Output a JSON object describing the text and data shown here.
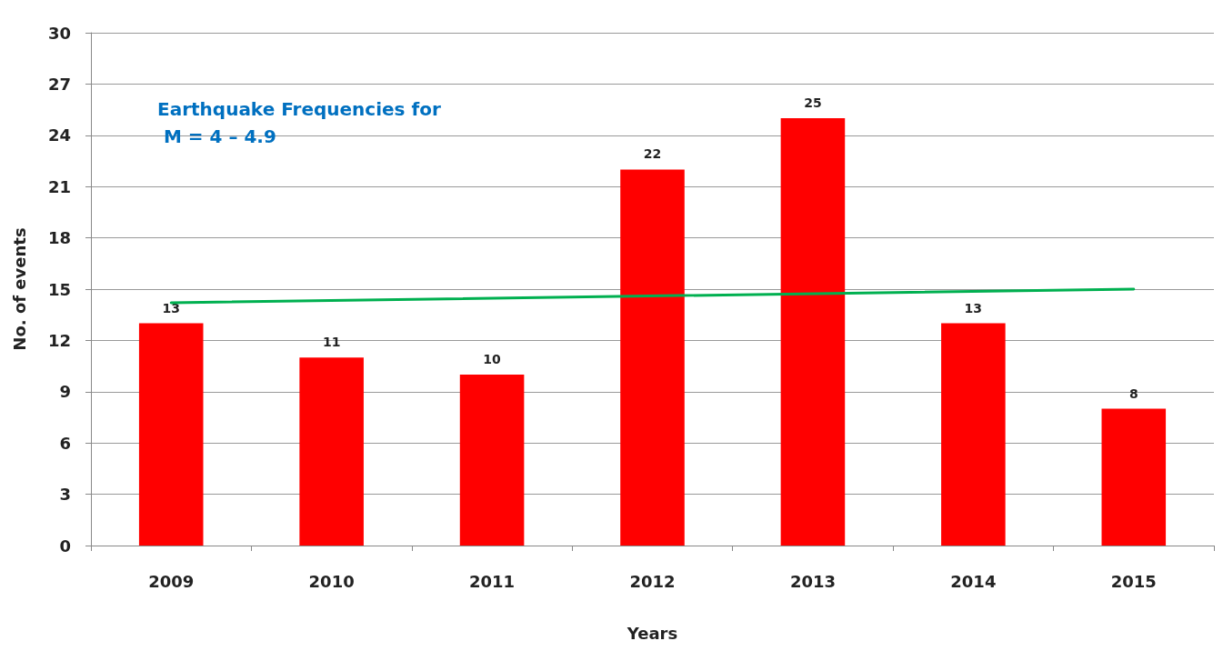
{
  "chart_data": {
    "type": "bar",
    "title": "Earthquake Frequencies for M = 4 – 4.9",
    "xlabel": "Years",
    "ylabel": "No. of events",
    "categories": [
      "2009",
      "2010",
      "2011",
      "2012",
      "2013",
      "2014",
      "2015"
    ],
    "series": [
      {
        "color": "#ff0000",
        "values": [
          13,
          11,
          10,
          22,
          25,
          13,
          8
        ],
        "value_labels": [
          "13",
          "11",
          "10",
          "22",
          "25",
          "13",
          "8"
        ]
      },
      {
        "type": "line",
        "color": "#00b050",
        "values": [
          14.2,
          null,
          null,
          null,
          null,
          null,
          15.0
        ]
      }
    ],
    "ylim": [
      0,
      30
    ],
    "yticks": [
      0,
      3,
      6,
      9,
      12,
      15,
      18,
      21,
      24,
      27,
      30
    ],
    "grid": "y",
    "marker": "none",
    "line_style": "solid"
  }
}
